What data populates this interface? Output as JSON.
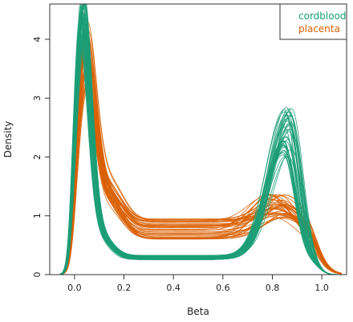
{
  "chart_data": {
    "type": "line",
    "title": "",
    "xlabel": "Beta",
    "ylabel": "Density",
    "xlim": [
      -0.1,
      1.1
    ],
    "ylim": [
      0,
      4.6
    ],
    "x_ticks": [
      "0.0",
      "0.2",
      "0.4",
      "0.6",
      "0.8",
      "1.0"
    ],
    "y_ticks": [
      "0",
      "1",
      "2",
      "3",
      "4"
    ],
    "grid": false,
    "legend_position": "top-right",
    "reference_line_y": 0,
    "series": [
      {
        "name": "cordblood",
        "color": "#1b9e77",
        "curve_count": 40,
        "peak1_x_range": [
          0.02,
          0.04
        ],
        "peak1_y_range": [
          3.7,
          4.6
        ],
        "trough_y_range": [
          0.25,
          0.33
        ],
        "peak2_x_range": [
          0.84,
          0.88
        ],
        "peak2_y_range": [
          2.0,
          2.85
        ]
      },
      {
        "name": "placenta",
        "color": "#d95f02",
        "curve_count": 40,
        "peak1_x_range": [
          0.03,
          0.05
        ],
        "peak1_y_range": [
          2.65,
          3.8
        ],
        "trough_y_range": [
          0.6,
          0.95
        ],
        "peak2_x_range": [
          0.78,
          0.86
        ],
        "peak2_y_range": [
          0.95,
          1.4
        ]
      }
    ]
  }
}
